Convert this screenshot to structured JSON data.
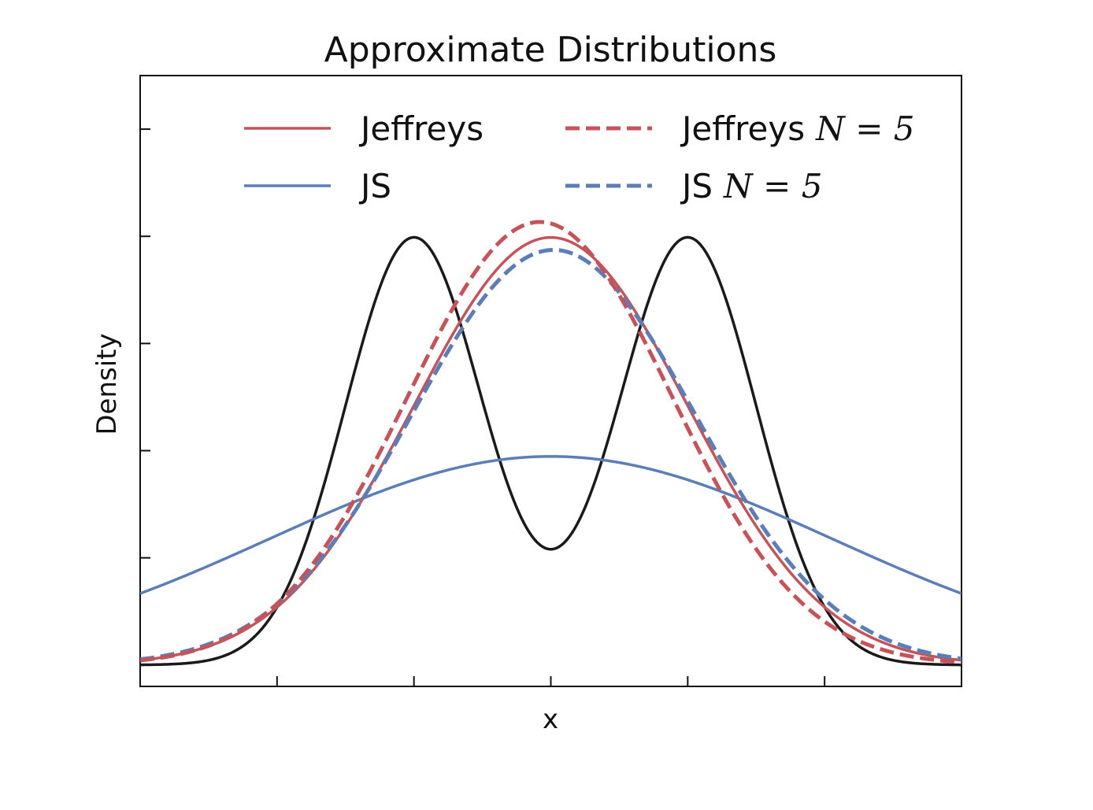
{
  "chart_data": {
    "type": "line",
    "title": "Approximate Distributions",
    "xlabel": "x",
    "ylabel": "Density",
    "xlim": [
      -3,
      3
    ],
    "ylim": [
      -0.02,
      0.55
    ],
    "x_ticks": [
      -3,
      -2,
      -1,
      0,
      1,
      2,
      3
    ],
    "y_ticks": [
      0.0,
      0.1,
      0.2,
      0.3,
      0.4,
      0.5
    ],
    "tick_labels_shown": false,
    "grid": false,
    "legend": {
      "placement": "top",
      "columns": 2,
      "entries": [
        {
          "series": "Jeffreys",
          "label": "Jeffreys",
          "math": ""
        },
        {
          "series": "Jeffreys N=5",
          "label": "Jeffreys",
          "math": "N = 5"
        },
        {
          "series": "JS",
          "label": "JS",
          "math": ""
        },
        {
          "series": "JS N=5",
          "label": "JS",
          "math": "N = 5"
        }
      ]
    },
    "series": [
      {
        "name": "",
        "kind": "mixture",
        "color": "#1a1a1a",
        "dash": "solid",
        "in_legend": false,
        "components": [
          {
            "weight": 0.5,
            "mean": -1,
            "std": 0.5
          },
          {
            "weight": 0.5,
            "mean": 1,
            "std": 0.5
          }
        ]
      },
      {
        "name": "Jeffreys",
        "kind": "gaussian",
        "color": "#c4545a",
        "dash": "solid",
        "in_legend": true,
        "mean": 0.0,
        "std": 1.0
      },
      {
        "name": "JS",
        "kind": "gaussian",
        "color": "#5b7db8",
        "dash": "solid",
        "in_legend": true,
        "mean": 0.0,
        "std": 2.05
      },
      {
        "name": "Jeffreys N=5",
        "kind": "gaussian",
        "color": "#c4545a",
        "dash": "dashed",
        "in_legend": true,
        "mean": -0.08,
        "std": 0.965
      },
      {
        "name": "JS N=5",
        "kind": "gaussian",
        "color": "#5b7db8",
        "dash": "dashed",
        "in_legend": true,
        "mean": 0.02,
        "std": 1.03
      }
    ]
  }
}
